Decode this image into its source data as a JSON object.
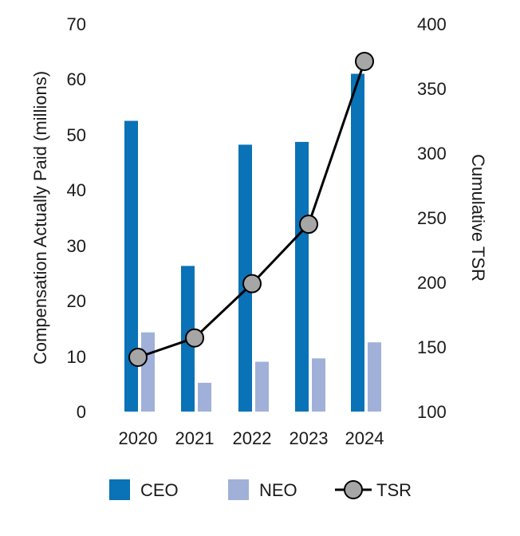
{
  "chart_data": {
    "type": "bar",
    "categories": [
      "2020",
      "2021",
      "2022",
      "2023",
      "2024"
    ],
    "series": [
      {
        "name": "CEO",
        "type": "bar",
        "axis": "left",
        "values": [
          52.5,
          26.3,
          48.2,
          48.7,
          61.0
        ],
        "color": "#0A72B6"
      },
      {
        "name": "NEO",
        "type": "bar",
        "axis": "left",
        "values": [
          14.3,
          5.2,
          9.0,
          9.6,
          12.5
        ],
        "color": "#A0B0D8"
      },
      {
        "name": "TSR",
        "type": "line",
        "axis": "right",
        "values": [
          142,
          157,
          199,
          245,
          371
        ],
        "color": "#000000",
        "marker_color": "#A6A6A6"
      }
    ],
    "ylabel_left": "Compensation Actually Paid (millions)",
    "ylabel_right": "Cumulative TSR",
    "ylim_left": [
      0,
      70
    ],
    "yticks_left": [
      0,
      10,
      20,
      30,
      40,
      50,
      60,
      70
    ],
    "ylim_right": [
      100,
      400
    ],
    "yticks_right": [
      100,
      150,
      200,
      250,
      300,
      350,
      400
    ],
    "legend": [
      "CEO",
      "NEO",
      "TSR"
    ],
    "legend_position": "bottom",
    "grid": false
  }
}
